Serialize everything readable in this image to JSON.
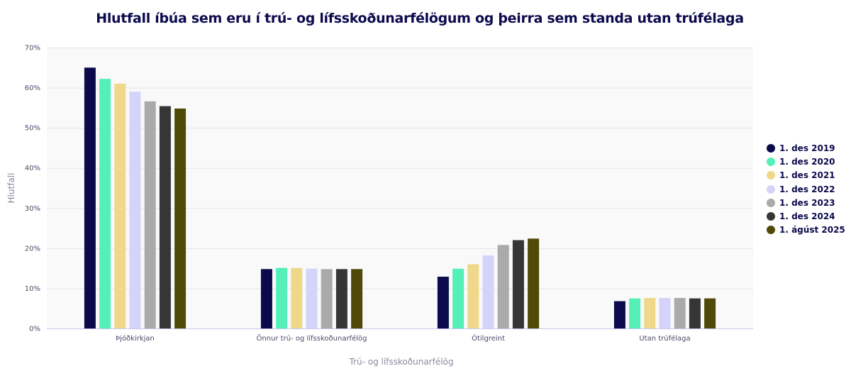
{
  "chart_data": {
    "type": "bar",
    "title": "Hlutfall íbúa sem eru í trú- og lífsskoðunarfélögum og þeirra sem standa utan trúfélaga",
    "xlabel": "Trú- og lífsskoðunarfélög",
    "ylabel": "Hlutfall",
    "ylim": [
      0,
      70
    ],
    "yticks": [
      "0%",
      "10%",
      "20%",
      "30%",
      "40%",
      "50%",
      "60%",
      "70%"
    ],
    "grid": true,
    "legend_position": "right",
    "categories": [
      "Þjóðkirkjan",
      "Önnur trú- og lífsskoðunarfélög",
      "Ótilgreint",
      "Utan trúfélaga"
    ],
    "series": [
      {
        "name": "1. des 2019",
        "color": "#0b0a4d",
        "values": [
          65.0,
          14.8,
          12.9,
          6.8
        ]
      },
      {
        "name": "1. des 2020",
        "color": "#55f0b8",
        "values": [
          62.2,
          15.1,
          14.9,
          7.5
        ]
      },
      {
        "name": "1. des 2021",
        "color": "#f0d88a",
        "values": [
          61.0,
          15.1,
          16.0,
          7.6
        ]
      },
      {
        "name": "1. des 2022",
        "color": "#d4d4fa",
        "values": [
          59.0,
          14.9,
          18.2,
          7.6
        ]
      },
      {
        "name": "1. des 2023",
        "color": "#aaaaaa",
        "values": [
          56.6,
          14.8,
          20.8,
          7.6
        ]
      },
      {
        "name": "1. des 2024",
        "color": "#363636",
        "values": [
          55.4,
          14.8,
          22.0,
          7.5
        ]
      },
      {
        "name": "1. ágúst 2025",
        "color": "#504a08",
        "values": [
          54.8,
          14.8,
          22.4,
          7.5
        ]
      }
    ]
  }
}
